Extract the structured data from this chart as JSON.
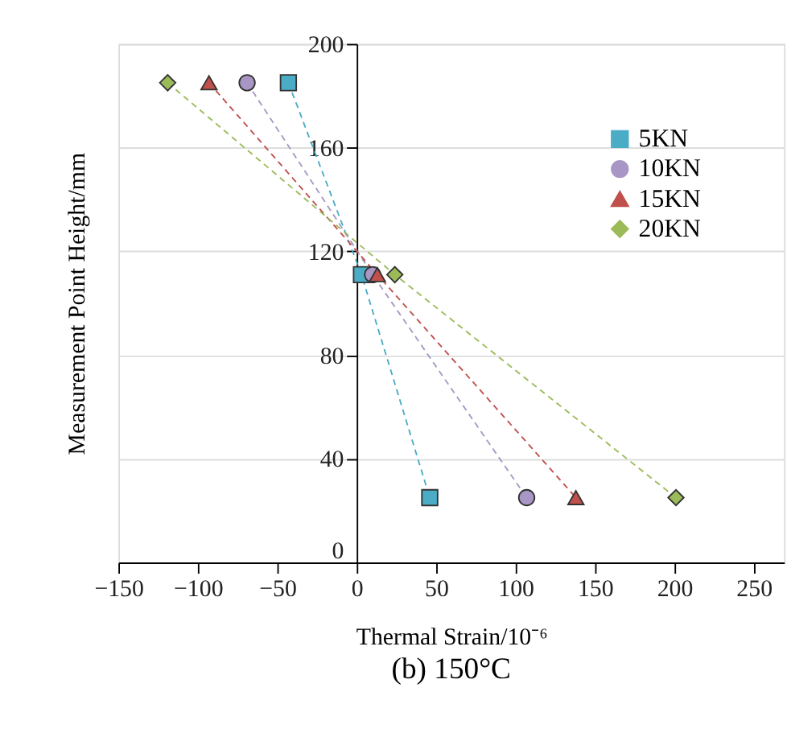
{
  "chart_data": {
    "type": "line",
    "title": "(b) 150°C",
    "xlabel": "Thermal Strain/10⁻⁶",
    "ylabel": "Measurement Point Height/mm",
    "line_style": "dashed",
    "grid": "y",
    "legend": "top right",
    "xlim": [
      -150,
      269
    ],
    "xticks": [
      -150,
      -100,
      -50,
      0,
      50,
      100,
      150,
      200,
      250
    ],
    "ylim": [
      0,
      200
    ],
    "yticks": [
      0,
      40,
      80,
      120,
      160,
      200
    ],
    "series": [
      {
        "name": "5KN",
        "color": "#4bacc6",
        "marker": "square",
        "x": [
          -43,
          3,
          46
        ],
        "values": [
          185,
          111,
          25
        ]
      },
      {
        "name": "10KN",
        "color": "#a897c5",
        "marker": "circle",
        "x": [
          -69,
          10,
          107
        ],
        "values": [
          185,
          111,
          25
        ]
      },
      {
        "name": "15KN",
        "color": "#c0504d",
        "marker": "triangle",
        "x": [
          -93,
          13,
          138
        ],
        "values": [
          185,
          111,
          25
        ]
      },
      {
        "name": "20KN",
        "color": "#9bbb59",
        "marker": "diamond",
        "x": [
          -119,
          24,
          201
        ],
        "values": [
          185,
          111,
          25
        ]
      }
    ]
  }
}
